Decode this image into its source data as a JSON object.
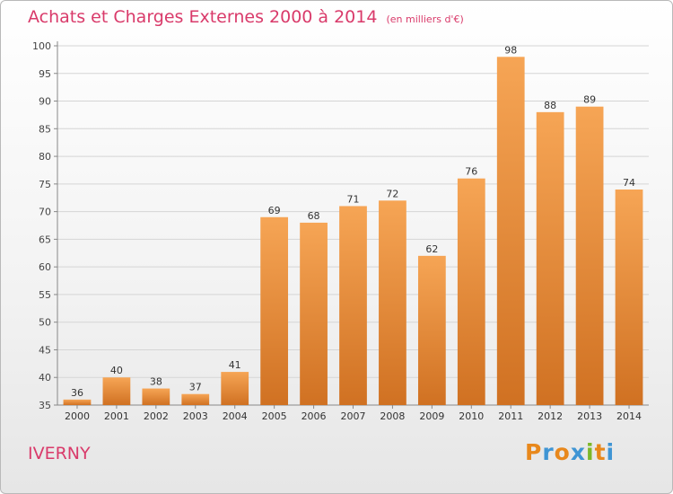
{
  "header": {
    "title": "Achats et Charges Externes 2000 à 2014",
    "subtitle": "(en milliers d'€)"
  },
  "footer": {
    "commune": "IVERNY",
    "logo": {
      "letters": [
        "P",
        "r",
        "o",
        "x",
        "i",
        "t",
        "i"
      ],
      "colors": [
        "#e8881c",
        "#3f95d4",
        "#e8881c",
        "#3f95d4",
        "#7cb828",
        "#e8881c",
        "#3f95d4"
      ]
    }
  },
  "colors": {
    "title": "#d93a6a",
    "bar_light": "#f6a555",
    "bar_dark": "#d07122",
    "grid": "#d5d5d5"
  },
  "chart_data": {
    "type": "bar",
    "categories": [
      "2000",
      "2001",
      "2002",
      "2003",
      "2004",
      "2005",
      "2006",
      "2007",
      "2008",
      "2009",
      "2010",
      "2011",
      "2012",
      "2013",
      "2014"
    ],
    "values": [
      36,
      40,
      38,
      37,
      41,
      69,
      68,
      71,
      72,
      62,
      76,
      98,
      88,
      89,
      74
    ],
    "title": "Achats et Charges Externes 2000 à 2014",
    "subtitle": "(en milliers d'€)",
    "ylim": [
      35,
      100
    ],
    "yticks": [
      35,
      40,
      45,
      50,
      55,
      60,
      65,
      70,
      75,
      80,
      85,
      90,
      95,
      100
    ],
    "grid": true
  }
}
